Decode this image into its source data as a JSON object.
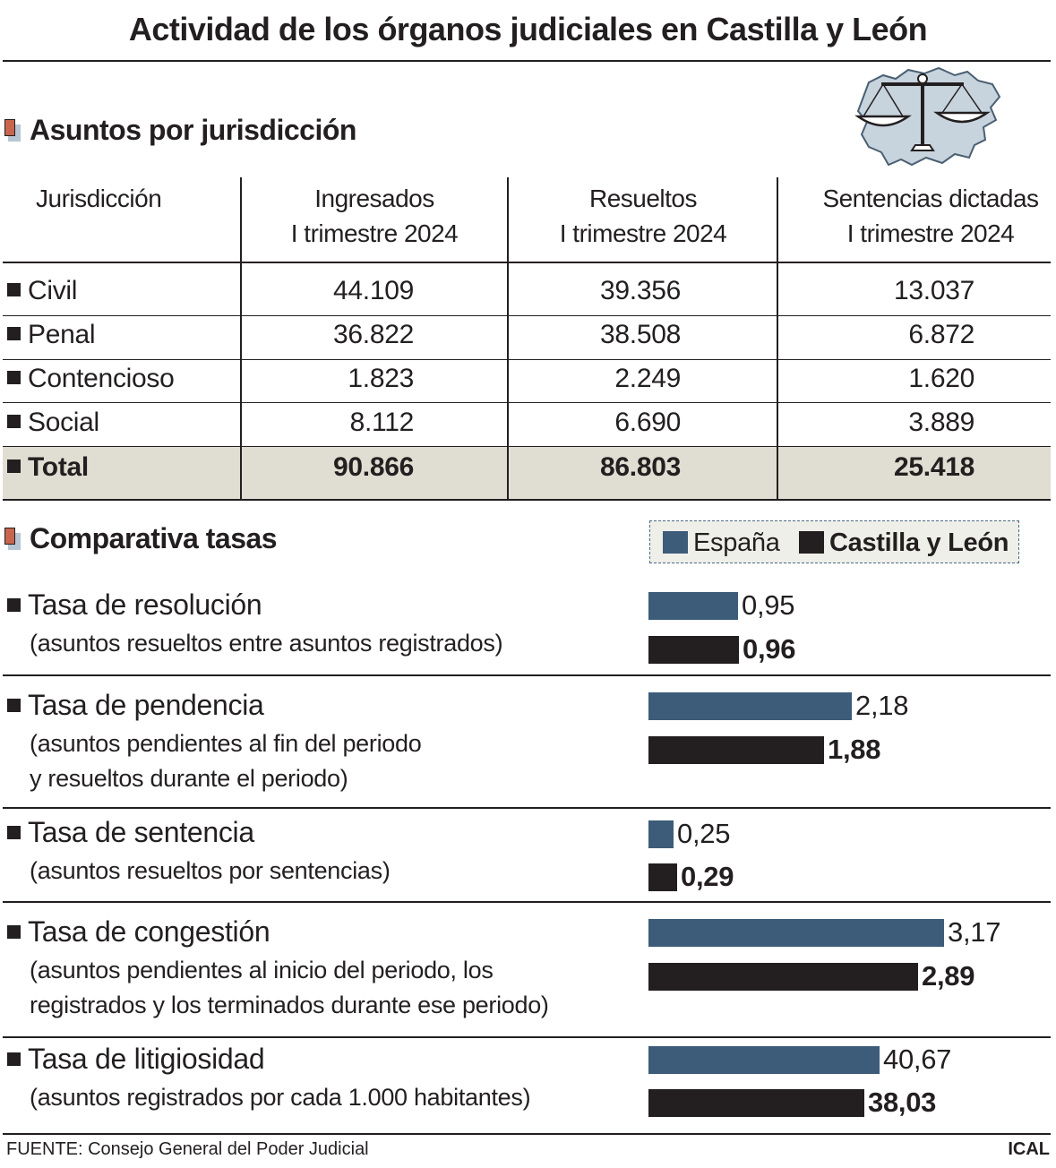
{
  "title": "Actividad de los órganos judiciales en Castilla y León",
  "section1": {
    "title": "Asuntos por jurisdicción",
    "headers": [
      {
        "line1": "Jurisdicción",
        "line2": ""
      },
      {
        "line1": "Ingresados",
        "line2": "I trimestre 2024"
      },
      {
        "line1": "Resueltos",
        "line2": "I trimestre 2024"
      },
      {
        "line1": "Sentencias dictadas",
        "line2": "I trimestre 2024"
      }
    ],
    "rows": [
      {
        "label": "Civil",
        "values": [
          "44.109",
          "39.356",
          "13.037"
        ]
      },
      {
        "label": "Penal",
        "values": [
          "36.822",
          "38.508",
          "6.872"
        ]
      },
      {
        "label": "Contencioso",
        "values": [
          "1.823",
          "2.249",
          "1.620"
        ]
      },
      {
        "label": "Social",
        "values": [
          "8.112",
          "6.690",
          "3.889"
        ]
      },
      {
        "label": "Total",
        "values": [
          "90.866",
          "86.803",
          "25.418"
        ]
      }
    ]
  },
  "section2": {
    "title": "Comparativa tasas",
    "legend": {
      "es": "España",
      "cyl": "Castilla y León"
    },
    "colors": {
      "es": "#3c5c7a",
      "cyl": "#231f20",
      "accent": "#c8654f"
    },
    "rates": [
      {
        "title": "Tasa de resolución",
        "sub": [
          "(asuntos resueltos entre asuntos registrados)"
        ],
        "es": "0,95",
        "cyl": "0,96"
      },
      {
        "title": "Tasa de pendencia",
        "sub": [
          "(asuntos pendientes al fin del periodo",
          "y resueltos durante el periodo)"
        ],
        "es": "2,18",
        "cyl": "1,88"
      },
      {
        "title": "Tasa de sentencia",
        "sub": [
          "(asuntos resueltos por sentencias)"
        ],
        "es": "0,25",
        "cyl": "0,29"
      },
      {
        "title": "Tasa de congestión",
        "sub": [
          "(asuntos pendientes al inicio del periodo, los",
          "registrados y los terminados durante ese periodo)"
        ],
        "es": "3,17",
        "cyl": "2,89"
      },
      {
        "title": "Tasa de litigiosidad",
        "sub": [
          "(asuntos registrados por cada 1.000 habitantes)"
        ],
        "es": "40,67",
        "cyl": "38,03"
      }
    ]
  },
  "chart_data": {
    "type": "bar",
    "categories": [
      "Tasa de resolución",
      "Tasa de pendencia",
      "Tasa de sentencia",
      "Tasa de congestión",
      "Tasa de litigiosidad"
    ],
    "series": [
      {
        "name": "España",
        "values": [
          0.95,
          2.18,
          0.25,
          3.17,
          40.67
        ]
      },
      {
        "name": "Castilla y León",
        "values": [
          0.96,
          1.88,
          0.29,
          2.89,
          38.03
        ]
      }
    ]
  },
  "source": "FUENTE: Consejo General del Poder Judicial",
  "brand": "ICAL",
  "logo": {
    "icon": "scales-of-justice-on-map-icon"
  }
}
